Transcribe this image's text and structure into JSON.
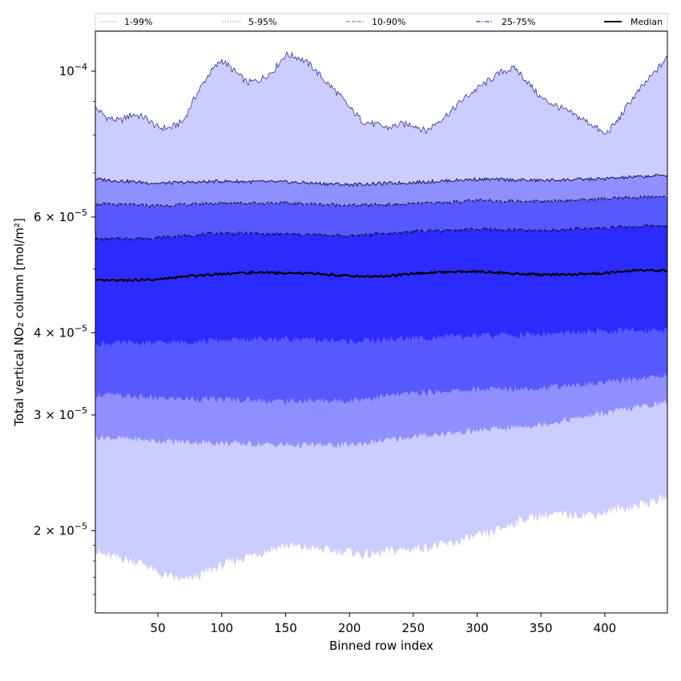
{
  "chart_data": {
    "type": "area",
    "xlabel": "Binned row index",
    "ylabel": "Total vertical NO₂ column [mol/m²]",
    "xlim": [
      1,
      449
    ],
    "ylim": [
      1.5e-05,
      0.000115
    ],
    "yscale": "log",
    "x_ticks": [
      {
        "value": 50,
        "label": "50"
      },
      {
        "value": 100,
        "label": "100"
      },
      {
        "value": 150,
        "label": "150"
      },
      {
        "value": 200,
        "label": "200"
      },
      {
        "value": 250,
        "label": "250"
      },
      {
        "value": 300,
        "label": "300"
      },
      {
        "value": 350,
        "label": "350"
      },
      {
        "value": 400,
        "label": "400"
      }
    ],
    "y_ticks": [
      {
        "value": 2e-05,
        "base": "2 × 10",
        "exp": "−5"
      },
      {
        "value": 3e-05,
        "base": "3 × 10",
        "exp": "−5"
      },
      {
        "value": 4e-05,
        "base": "4 × 10",
        "exp": "−5"
      },
      {
        "value": 6e-05,
        "base": "6 × 10",
        "exp": "−5"
      },
      {
        "value": 0.0001,
        "base": "10",
        "exp": "−4"
      }
    ],
    "y_minor_ticks": [
      1.6e-05,
      1.7e-05,
      1.8e-05,
      1.9e-05,
      5e-05,
      7e-05,
      8e-05,
      9e-05
    ],
    "legend_position": "top",
    "legend": [
      {
        "label": "1-99%",
        "style": "solid",
        "color": "#d8d8f0"
      },
      {
        "label": "5-95%",
        "style": "dotted",
        "color": "#a0a0d8"
      },
      {
        "label": "10-90%",
        "style": "dashed",
        "color": "#7f7ff0"
      },
      {
        "label": "25-75%",
        "style": "dashdot",
        "color": "#3636e0"
      },
      {
        "label": "Median",
        "style": "solid",
        "color": "#000000"
      }
    ],
    "bands": [
      {
        "name": "1-99%",
        "color": "#cccdff",
        "x": [
          1,
          10,
          20,
          30,
          40,
          50,
          60,
          70,
          80,
          90,
          100,
          110,
          120,
          130,
          140,
          150,
          160,
          170,
          180,
          190,
          200,
          210,
          220,
          230,
          240,
          250,
          260,
          270,
          280,
          290,
          300,
          310,
          320,
          330,
          340,
          350,
          360,
          370,
          380,
          390,
          400,
          410,
          420,
          430,
          440,
          449
        ],
        "lower": [
          1.86e-05,
          1.83e-05,
          1.82e-05,
          1.8e-05,
          1.78e-05,
          1.72e-05,
          1.7e-05,
          1.68e-05,
          1.7e-05,
          1.74e-05,
          1.77e-05,
          1.8e-05,
          1.83e-05,
          1.85e-05,
          1.88e-05,
          1.9e-05,
          1.89e-05,
          1.88e-05,
          1.87e-05,
          1.86e-05,
          1.86e-05,
          1.84e-05,
          1.84e-05,
          1.86e-05,
          1.87e-05,
          1.88e-05,
          1.89e-05,
          1.9e-05,
          1.91e-05,
          1.94e-05,
          1.96e-05,
          1.98e-05,
          2.02e-05,
          2.06e-05,
          2.09e-05,
          2.11e-05,
          2.12e-05,
          2.11e-05,
          2.12e-05,
          2.12e-05,
          2.13e-05,
          2.16e-05,
          2.17e-05,
          2.2e-05,
          2.22e-05,
          2.25e-05
        ],
        "upper": [
          8.8e-05,
          8.5e-05,
          8.4e-05,
          8.6e-05,
          8.5e-05,
          8.2e-05,
          8.2e-05,
          8.4e-05,
          9.2e-05,
          9.9e-05,
          0.000104,
          0.0001,
          9.6e-05,
          9.7e-05,
          0.0001,
          0.000106,
          0.000105,
          0.000102,
          9.7e-05,
          9.3e-05,
          8.8e-05,
          8.4e-05,
          8.3e-05,
          8.2e-05,
          8.3e-05,
          8.3e-05,
          8.1e-05,
          8.4e-05,
          8.7e-05,
          9.1e-05,
          9.4e-05,
          9.7e-05,
          0.0001,
          0.000101,
          9.6e-05,
          9.1e-05,
          8.9e-05,
          8.7e-05,
          8.5e-05,
          8.3e-05,
          8e-05,
          8.4e-05,
          9e-05,
          9.5e-05,
          0.0001,
          0.000105
        ]
      },
      {
        "name": "5-95%",
        "color": "#8f8fff",
        "x": [
          1,
          50,
          100,
          150,
          200,
          250,
          300,
          350,
          400,
          449
        ],
        "lower": [
          2.78e-05,
          2.74e-05,
          2.72e-05,
          2.7e-05,
          2.7e-05,
          2.78e-05,
          2.84e-05,
          2.9e-05,
          3.02e-05,
          3.14e-05
        ],
        "upper": [
          6.85e-05,
          6.75e-05,
          6.8e-05,
          6.78e-05,
          6.72e-05,
          6.77e-05,
          6.85e-05,
          6.82e-05,
          6.86e-05,
          6.95e-05
        ]
      },
      {
        "name": "10-90%",
        "color": "#5858ff",
        "x": [
          1,
          50,
          100,
          150,
          200,
          250,
          300,
          350,
          400,
          449
        ],
        "lower": [
          3.23e-05,
          3.18e-05,
          3.17e-05,
          3.15e-05,
          3.16e-05,
          3.24e-05,
          3.28e-05,
          3.3e-05,
          3.36e-05,
          3.45e-05
        ],
        "upper": [
          6.28e-05,
          6.24e-05,
          6.3e-05,
          6.3e-05,
          6.25e-05,
          6.28e-05,
          6.35e-05,
          6.34e-05,
          6.39e-05,
          6.45e-05
        ]
      },
      {
        "name": "25-75%",
        "color": "#2b2bff",
        "x": [
          1,
          50,
          100,
          150,
          200,
          250,
          300,
          350,
          400,
          449
        ],
        "lower": [
          3.86e-05,
          3.86e-05,
          3.9e-05,
          3.92e-05,
          3.88e-05,
          3.93e-05,
          3.96e-05,
          3.98e-05,
          4.02e-05,
          4.05e-05
        ],
        "upper": [
          5.55e-05,
          5.58e-05,
          5.67e-05,
          5.65e-05,
          5.62e-05,
          5.7e-05,
          5.75e-05,
          5.72e-05,
          5.78e-05,
          5.83e-05
        ]
      }
    ],
    "series": [
      {
        "name": "Median",
        "color": "#000000",
        "x": [
          1,
          25,
          50,
          75,
          100,
          125,
          150,
          175,
          200,
          225,
          250,
          275,
          300,
          325,
          350,
          375,
          400,
          425,
          449
        ],
        "values": [
          4.8e-05,
          4.81e-05,
          4.82e-05,
          4.88e-05,
          4.92e-05,
          4.94e-05,
          4.93e-05,
          4.92e-05,
          4.88e-05,
          4.87e-05,
          4.92e-05,
          4.95e-05,
          4.96e-05,
          4.93e-05,
          4.9e-05,
          4.91e-05,
          4.93e-05,
          4.98e-05,
          4.97e-05
        ]
      }
    ]
  }
}
